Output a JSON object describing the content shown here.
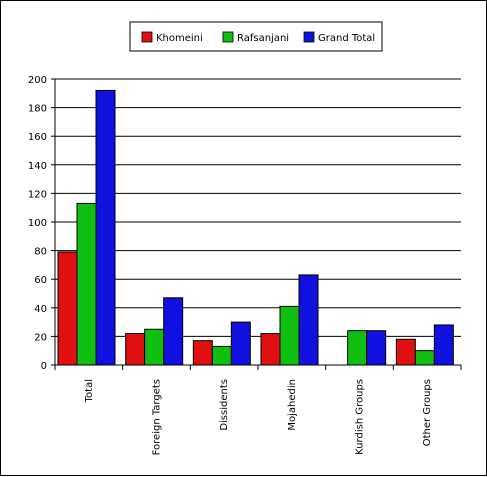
{
  "chart_data": {
    "type": "bar",
    "categories": [
      "Total",
      "Foreign Targets",
      "Dissidents",
      "Mojahedin",
      "Kurdish Groups",
      "Other Groups"
    ],
    "series": [
      {
        "name": "Khomeini",
        "color": "#e01010",
        "values": [
          79,
          22,
          17,
          22,
          0,
          18
        ]
      },
      {
        "name": "Rafsanjani",
        "color": "#10c010",
        "values": [
          113,
          25,
          13,
          41,
          24,
          10
        ]
      },
      {
        "name": "Grand Total",
        "color": "#1010e0",
        "values": [
          192,
          47,
          30,
          63,
          24,
          28
        ]
      }
    ],
    "yticks": [
      "0",
      "20",
      "40",
      "60",
      "80",
      "100",
      "120",
      "140",
      "160",
      "180",
      "200"
    ],
    "ylim": [
      0,
      200
    ],
    "grid": true,
    "legend_position": "top-center",
    "title": "",
    "xlabel": "",
    "ylabel": ""
  }
}
